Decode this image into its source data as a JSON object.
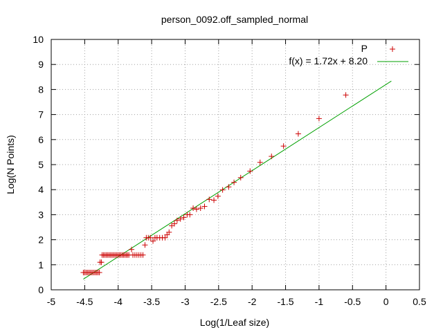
{
  "chart_data": {
    "type": "scatter",
    "title": "person_0092.off_sampled_normal",
    "xlabel": "Log(1/Leaf size)",
    "ylabel": "Log(N Points)",
    "xlim": [
      -5,
      0.5
    ],
    "ylim": [
      0,
      10
    ],
    "x_ticks": [
      "-5",
      "-4.5",
      "-4",
      "-3.5",
      "-3",
      "-2.5",
      "-2",
      "-1.5",
      "-1",
      "-0.5",
      "0",
      "0.5"
    ],
    "y_ticks": [
      "0",
      "1",
      "2",
      "3",
      "4",
      "5",
      "6",
      "7",
      "8",
      "9",
      "10"
    ],
    "grid": true,
    "legend_position": "top-right",
    "series": [
      {
        "name": "P",
        "kind": "points",
        "marker": "+",
        "color": "#cc0000",
        "points": [
          [
            -4.52,
            0.69
          ],
          [
            -4.5,
            0.69
          ],
          [
            -4.48,
            0.69
          ],
          [
            -4.46,
            0.69
          ],
          [
            -4.44,
            0.69
          ],
          [
            -4.42,
            0.69
          ],
          [
            -4.4,
            0.69
          ],
          [
            -4.38,
            0.69
          ],
          [
            -4.36,
            0.69
          ],
          [
            -4.34,
            0.69
          ],
          [
            -4.32,
            0.69
          ],
          [
            -4.3,
            0.69
          ],
          [
            -4.28,
            0.69
          ],
          [
            -4.27,
            1.1
          ],
          [
            -4.25,
            1.1
          ],
          [
            -4.24,
            1.39
          ],
          [
            -4.22,
            1.39
          ],
          [
            -4.2,
            1.39
          ],
          [
            -4.18,
            1.39
          ],
          [
            -4.16,
            1.39
          ],
          [
            -4.14,
            1.39
          ],
          [
            -4.12,
            1.39
          ],
          [
            -4.1,
            1.39
          ],
          [
            -4.08,
            1.39
          ],
          [
            -4.06,
            1.39
          ],
          [
            -4.04,
            1.39
          ],
          [
            -4.02,
            1.39
          ],
          [
            -4.0,
            1.39
          ],
          [
            -3.98,
            1.39
          ],
          [
            -3.96,
            1.39
          ],
          [
            -3.94,
            1.39
          ],
          [
            -3.92,
            1.39
          ],
          [
            -3.9,
            1.39
          ],
          [
            -3.88,
            1.39
          ],
          [
            -3.86,
            1.39
          ],
          [
            -3.84,
            1.39
          ],
          [
            -3.8,
            1.61
          ],
          [
            -3.78,
            1.39
          ],
          [
            -3.75,
            1.39
          ],
          [
            -3.72,
            1.39
          ],
          [
            -3.69,
            1.39
          ],
          [
            -3.66,
            1.39
          ],
          [
            -3.63,
            1.39
          ],
          [
            -3.6,
            1.79
          ],
          [
            -3.58,
            2.08
          ],
          [
            -3.55,
            2.08
          ],
          [
            -3.52,
            2.08
          ],
          [
            -3.48,
            1.95
          ],
          [
            -3.45,
            2.08
          ],
          [
            -3.42,
            2.08
          ],
          [
            -3.38,
            2.08
          ],
          [
            -3.34,
            2.08
          ],
          [
            -3.3,
            2.08
          ],
          [
            -3.27,
            2.2
          ],
          [
            -3.24,
            2.3
          ],
          [
            -3.2,
            2.56
          ],
          [
            -3.16,
            2.64
          ],
          [
            -3.12,
            2.77
          ],
          [
            -3.07,
            2.83
          ],
          [
            -3.02,
            2.89
          ],
          [
            -2.97,
            3.0
          ],
          [
            -2.93,
            3.0
          ],
          [
            -2.88,
            3.26
          ],
          [
            -2.83,
            3.22
          ],
          [
            -2.77,
            3.26
          ],
          [
            -2.71,
            3.33
          ],
          [
            -2.64,
            3.61
          ],
          [
            -2.57,
            3.58
          ],
          [
            -2.51,
            3.74
          ],
          [
            -2.44,
            3.99
          ],
          [
            -2.35,
            4.11
          ],
          [
            -2.27,
            4.29
          ],
          [
            -2.17,
            4.48
          ],
          [
            -2.03,
            4.74
          ],
          [
            -1.88,
            5.09
          ],
          [
            -1.71,
            5.33
          ],
          [
            -1.53,
            5.74
          ],
          [
            -1.31,
            6.23
          ],
          [
            -1.0,
            6.84
          ],
          [
            -0.6,
            7.78
          ]
        ]
      },
      {
        "name": "f(x) = 1.72x + 8.20",
        "kind": "line",
        "color": "#00a000",
        "slope": 1.72,
        "intercept": 8.2,
        "x_range": [
          -4.52,
          0.08
        ]
      }
    ]
  }
}
